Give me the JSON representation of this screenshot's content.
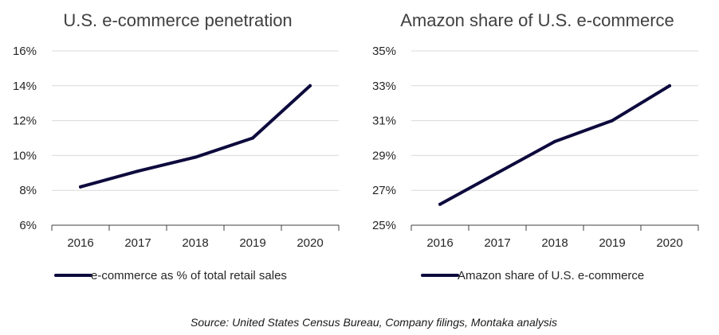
{
  "colors": {
    "series": "#0d0a3d",
    "grid": "#d9d9d9",
    "axis": "#404040"
  },
  "chart_data": [
    {
      "type": "line",
      "title": "U.S. e-commerce penetration",
      "categories": [
        "2016",
        "2017",
        "2018",
        "2019",
        "2020"
      ],
      "series": [
        {
          "name": "e-commerce as % of total retail sales",
          "values": [
            8.2,
            9.1,
            9.9,
            11.0,
            14.0
          ]
        }
      ],
      "ylim": [
        6,
        16
      ],
      "yticks": [
        "6%",
        "8%",
        "10%",
        "12%",
        "14%",
        "16%"
      ],
      "grid": true,
      "legend": "bottom"
    },
    {
      "type": "line",
      "title": "Amazon share of U.S. e-commerce",
      "categories": [
        "2016",
        "2017",
        "2018",
        "2019",
        "2020"
      ],
      "series": [
        {
          "name": "Amazon share of U.S. e-commerce",
          "values": [
            26.2,
            28.0,
            29.8,
            31.0,
            33.0
          ]
        }
      ],
      "ylim": [
        25,
        35
      ],
      "yticks": [
        "25%",
        "27%",
        "29%",
        "31%",
        "33%",
        "35%"
      ],
      "grid": true,
      "legend": "bottom"
    }
  ],
  "source": "Source: United States Census Bureau, Company filings, Montaka analysis"
}
